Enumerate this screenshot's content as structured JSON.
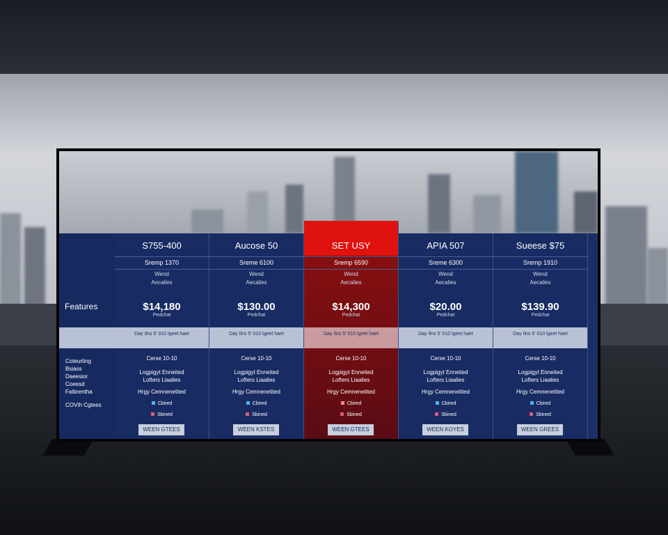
{
  "labels": {
    "features": "Features",
    "rows": [
      "Coteurting",
      "Bsiass",
      "Daeesior",
      "Coeesd",
      "Fatbrentha"
    ],
    "footer": "COVIh Cgtees"
  },
  "plans": [
    {
      "name": "S755-400",
      "subtitle": "Sremp 1370",
      "detail1": "Wend",
      "detail2": "Aecalies",
      "price": "$14,180",
      "price_note": "Pedchat",
      "band": "Day Ilns 5' 010 lgeet haet",
      "feature_title": "Cerse 10-10",
      "feature_line1": "Logpigyt Enneited",
      "feature_line2": "Lofters Liaalies",
      "feature_line3": "Hrgy Cemnenetited",
      "check1": "Cbired",
      "check2": "Sbined",
      "button": "WEEN GTEES"
    },
    {
      "name": "Aucose 50",
      "subtitle": "Sreme 6100",
      "detail1": "Wend",
      "detail2": "Aecalies",
      "price": "$130.00",
      "price_note": "Pedchat",
      "band": "Day Ilns 5' 010 lgeet haet",
      "feature_title": "Cerse 10-10",
      "feature_line1": "Logpigyt Enneited",
      "feature_line2": "Lofters Liaalies",
      "feature_line3": "Hrgy Cemnenetited",
      "check1": "Cbired",
      "check2": "Sbined",
      "button": "WEEN KSTES"
    },
    {
      "name": "SET USY",
      "subtitle": "Sremp 6590",
      "detail1": "Wend",
      "detail2": "Aecalies",
      "price": "$14,300",
      "price_note": "Pedchat",
      "band": "Day Ilns 5' 010 lgeet haet",
      "feature_title": "Cerse 10-10",
      "feature_line1": "Logpigyt Enneited",
      "feature_line2": "Lofters Liaalies",
      "feature_line3": "Hrgy Cemnenetited",
      "check1": "Cbired",
      "check2": "Sbined",
      "button": "WEEN GTEES"
    },
    {
      "name": "APIA 507",
      "subtitle": "Sreme 6300",
      "detail1": "Wend",
      "detail2": "Aecalies",
      "price": "$20.00",
      "price_note": "Pedchat",
      "band": "Day Ilns 5' 010 lgeet haet",
      "feature_title": "Cerse 10-10",
      "feature_line1": "Logpigyt Enneited",
      "feature_line2": "Lofters Liaalies",
      "feature_line3": "Hrgy Cemnenetited",
      "check1": "Cbired",
      "check2": "Sbined",
      "button": "WEEN KOYES"
    },
    {
      "name": "Sueese $75",
      "subtitle": "Sremp 1910",
      "detail1": "Wend",
      "detail2": "Aecalies",
      "price": "$139.90",
      "price_note": "Pedchat",
      "band": "Day Ilns 5' 010 lgeet haet",
      "feature_title": "Cerse 10-10",
      "feature_line1": "Logpigyt Enneited",
      "feature_line2": "Lofters Liaalies",
      "feature_line3": "Hrgy Cemnenetited",
      "check1": "Cbired",
      "check2": "Sbined",
      "button": "WEEN GREES"
    }
  ]
}
